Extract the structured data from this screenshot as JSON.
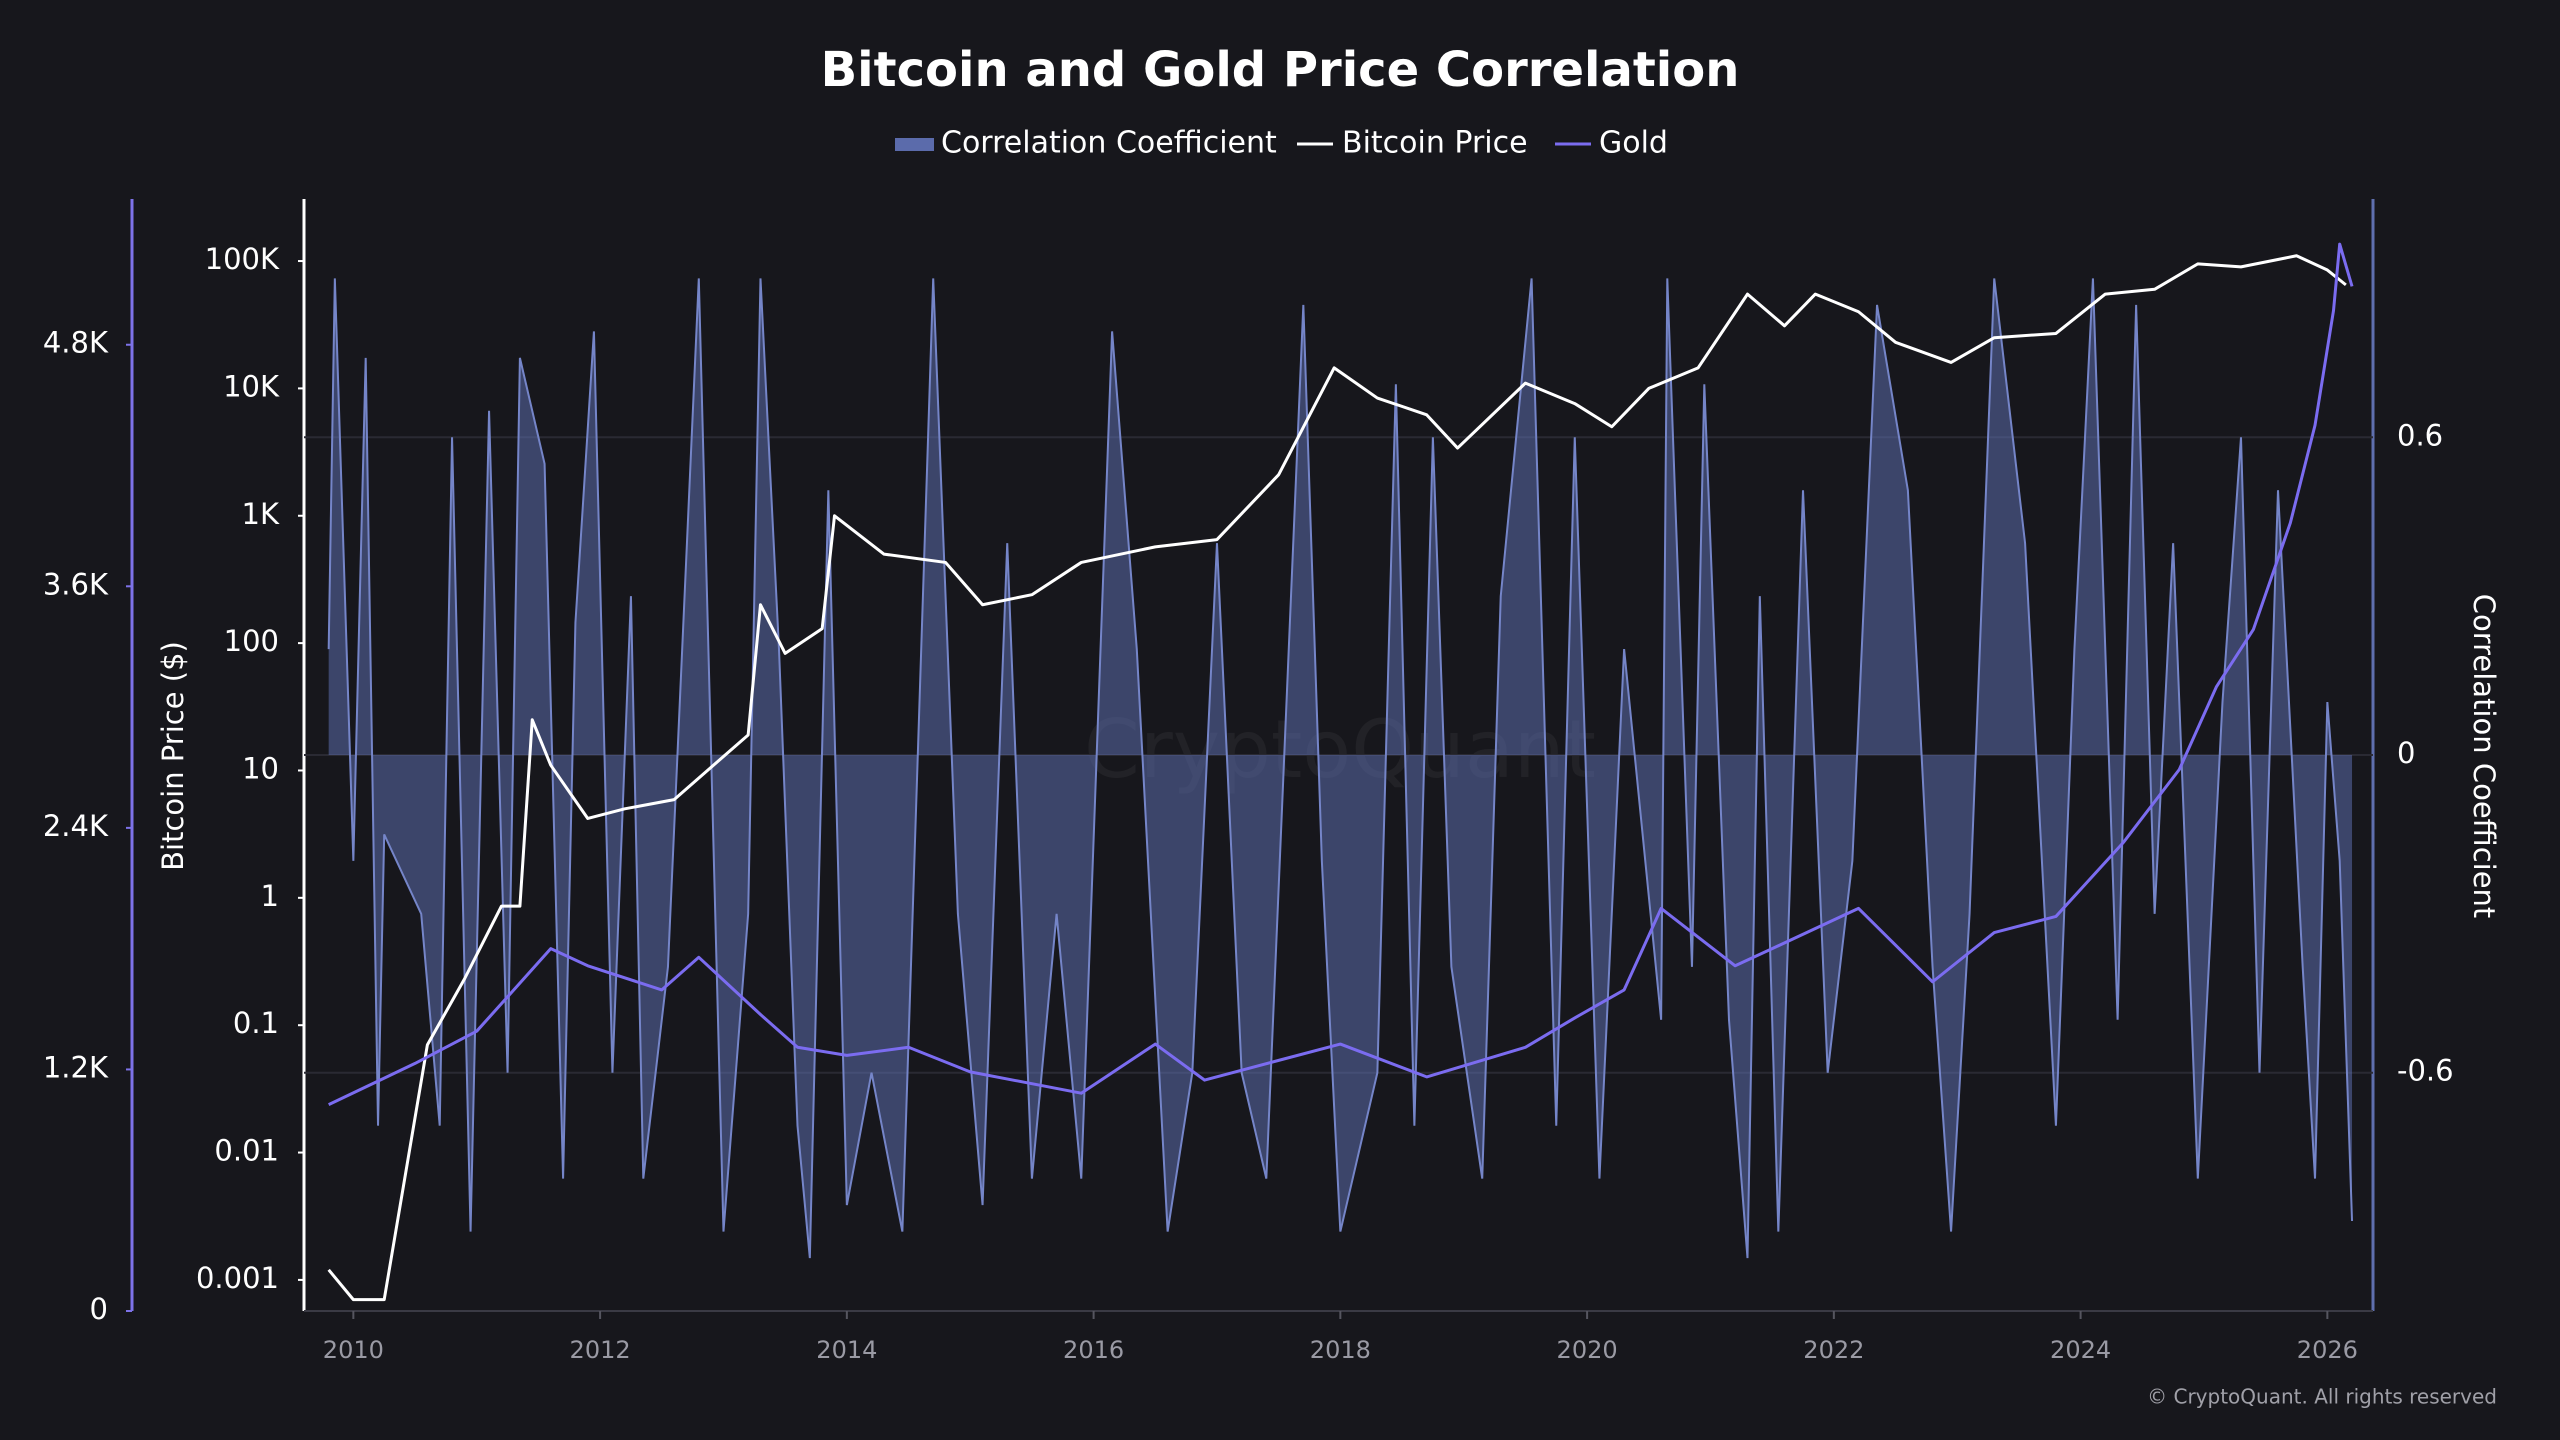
{
  "chart_data": {
    "type": "line",
    "title": "Bitcoin and Gold Price Correlation",
    "xlim": [
      2009.6,
      2026.37
    ],
    "xticks": [
      2010,
      2012,
      2014,
      2016,
      2018,
      2020,
      2022,
      2024,
      2026
    ],
    "ylabel": "Bitcoin Price ($)",
    "ylog": true,
    "ylim": [
      0.00057,
      307000
    ],
    "yticks": [
      0.001,
      0.01,
      0.1,
      1,
      10,
      100,
      {
        "value": 1000,
        "label": "1K"
      },
      {
        "value": 10000,
        "label": "10K"
      },
      {
        "value": 100000,
        "label": "100K"
      }
    ],
    "y2label": "Correlation Coefficient",
    "y2lim": [
      -1.05,
      1.05
    ],
    "y2ticks": [
      -0.6,
      0,
      0.6
    ],
    "y3lim": [
      0,
      5524
    ],
    "y3ticks": [
      0,
      {
        "value": 1200,
        "label": "1.2K"
      },
      {
        "value": 2400,
        "label": "2.4K"
      },
      {
        "value": 3600,
        "label": "3.6K"
      },
      {
        "value": 4800,
        "label": "4.8K"
      }
    ],
    "grid": true,
    "watermark": "CryptoQuant",
    "footer": "© CryptoQuant. All rights reserved",
    "series": [
      {
        "name": "Correlation Coefficient",
        "type": "area",
        "axis": "y2",
        "color": "#5b6bab",
        "x": [
          2009.8,
          2009.85,
          2010.0,
          2010.1,
          2010.2,
          2010.25,
          2010.55,
          2010.7,
          2010.8,
          2010.95,
          2011.1,
          2011.25,
          2011.35,
          2011.55,
          2011.7,
          2011.8,
          2011.95,
          2012.1,
          2012.25,
          2012.35,
          2012.55,
          2012.8,
          2013.0,
          2013.2,
          2013.3,
          2013.45,
          2013.6,
          2013.7,
          2013.85,
          2014.0,
          2014.2,
          2014.45,
          2014.7,
          2014.9,
          2015.1,
          2015.3,
          2015.5,
          2015.7,
          2015.9,
          2016.15,
          2016.35,
          2016.6,
          2016.8,
          2017.0,
          2017.2,
          2017.4,
          2017.7,
          2017.85,
          2018.0,
          2018.3,
          2018.45,
          2018.6,
          2018.75,
          2018.9,
          2019.15,
          2019.3,
          2019.55,
          2019.75,
          2019.9,
          2020.1,
          2020.3,
          2020.6,
          2020.65,
          2020.85,
          2020.95,
          2021.15,
          2021.3,
          2021.4,
          2021.55,
          2021.75,
          2021.95,
          2022.15,
          2022.35,
          2022.6,
          2022.8,
          2022.95,
          2023.1,
          2023.3,
          2023.55,
          2023.8,
          2023.95,
          2024.1,
          2024.3,
          2024.45,
          2024.6,
          2024.75,
          2024.95,
          2025.15,
          2025.3,
          2025.45,
          2025.6,
          2025.8,
          2025.9,
          2026.0,
          2026.1,
          2026.2
        ],
        "values": [
          0.2,
          0.9,
          -0.2,
          0.75,
          -0.7,
          -0.15,
          -0.3,
          -0.7,
          0.6,
          -0.9,
          0.65,
          -0.6,
          0.75,
          0.55,
          -0.8,
          0.25,
          0.8,
          -0.6,
          0.3,
          -0.8,
          -0.4,
          0.9,
          -0.9,
          -0.3,
          0.9,
          0.2,
          -0.7,
          -0.95,
          0.5,
          -0.85,
          -0.6,
          -0.9,
          0.9,
          -0.3,
          -0.85,
          0.4,
          -0.8,
          -0.3,
          -0.8,
          0.8,
          0.2,
          -0.9,
          -0.6,
          0.4,
          -0.6,
          -0.8,
          0.85,
          -0.2,
          -0.9,
          -0.6,
          0.7,
          -0.7,
          0.6,
          -0.4,
          -0.8,
          0.3,
          0.9,
          -0.7,
          0.6,
          -0.8,
          0.2,
          -0.5,
          0.9,
          -0.4,
          0.7,
          -0.5,
          -0.95,
          0.3,
          -0.9,
          0.5,
          -0.6,
          -0.2,
          0.85,
          0.5,
          -0.4,
          -0.9,
          -0.3,
          0.9,
          0.4,
          -0.7,
          0.2,
          0.9,
          -0.5,
          0.85,
          -0.3,
          0.4,
          -0.8,
          0.1,
          0.6,
          -0.6,
          0.5,
          -0.4,
          -0.8,
          0.1,
          -0.2,
          -0.88
        ]
      },
      {
        "name": "Bitcoin Price",
        "type": "line",
        "axis": "y",
        "color": "#ffffff",
        "x": [
          2009.8,
          2010.0,
          2010.25,
          2010.6,
          2010.9,
          2011.2,
          2011.35,
          2011.45,
          2011.6,
          2011.9,
          2012.2,
          2012.6,
          2012.9,
          2013.2,
          2013.3,
          2013.5,
          2013.8,
          2013.9,
          2014.3,
          2014.8,
          2015.1,
          2015.5,
          2015.9,
          2016.5,
          2017.0,
          2017.5,
          2017.95,
          2018.3,
          2018.7,
          2018.95,
          2019.5,
          2019.9,
          2020.2,
          2020.5,
          2020.9,
          2021.3,
          2021.6,
          2021.85,
          2022.2,
          2022.5,
          2022.95,
          2023.3,
          2023.8,
          2024.2,
          2024.6,
          2024.95,
          2025.3,
          2025.75,
          2026.0,
          2026.15
        ],
        "values": [
          0.0012,
          0.0007,
          0.0007,
          0.07,
          0.23,
          0.86,
          0.86,
          25,
          11,
          4.2,
          5,
          5.9,
          10.6,
          19,
          200,
          83,
          130,
          1000,
          500,
          430,
          200,
          240,
          430,
          570,
          650,
          2100,
          14500,
          8400,
          6200,
          3400,
          11000,
          7600,
          5000,
          10000,
          14500,
          55000,
          31000,
          55000,
          40000,
          23000,
          16000,
          25000,
          27000,
          55000,
          60000,
          95000,
          90000,
          110000,
          85000,
          65000
        ]
      },
      {
        "name": "Gold",
        "type": "line",
        "axis": "y3",
        "color": "#7b6cf0",
        "x": [
          2009.8,
          2010.5,
          2011.0,
          2011.6,
          2011.9,
          2012.5,
          2012.8,
          2013.3,
          2013.6,
          2014.0,
          2014.5,
          2015.0,
          2015.9,
          2016.5,
          2016.9,
          2017.5,
          2018.0,
          2018.7,
          2019.5,
          2019.9,
          2020.3,
          2020.6,
          2021.2,
          2021.5,
          2022.2,
          2022.8,
          2023.3,
          2023.8,
          2024.35,
          2024.8,
          2025.1,
          2025.4,
          2025.7,
          2025.9,
          2026.05,
          2026.1,
          2026.2
        ],
        "values": [
          1025,
          1230,
          1390,
          1800,
          1715,
          1595,
          1757,
          1473,
          1310,
          1270,
          1310,
          1188,
          1082,
          1326,
          1147,
          1245,
          1326,
          1163,
          1310,
          1456,
          1595,
          2000,
          1715,
          1800,
          2000,
          1635,
          1880,
          1960,
          2330,
          2690,
          3100,
          3385,
          3915,
          4400,
          4970,
          5300,
          5090
        ]
      }
    ]
  }
}
